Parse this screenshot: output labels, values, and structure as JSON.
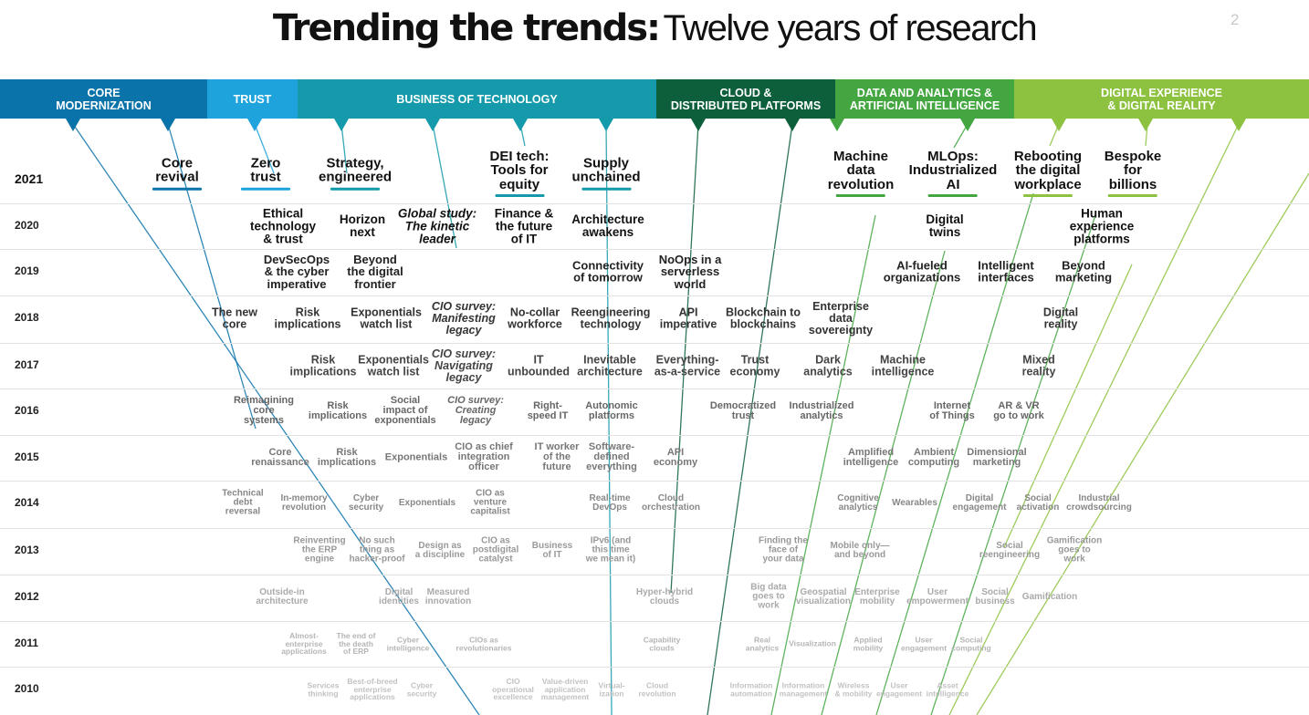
{
  "title": {
    "bold": "Trending the trends:",
    "light": "Twelve years of research"
  },
  "page_number": "2",
  "categories": [
    {
      "id": "core",
      "label": "CORE\nMODERNIZATION",
      "color": "#0a73aa"
    },
    {
      "id": "trust",
      "label": "TRUST",
      "color": "#1ea3dc"
    },
    {
      "id": "business",
      "label": "BUSINESS OF TECHNOLOGY",
      "color": "#149aaa"
    },
    {
      "id": "cloud",
      "label": "CLOUD &\nDISTRIBUTED PLATFORMS",
      "color": "#0d5f3b"
    },
    {
      "id": "data",
      "label": "DATA AND ANALYTICS &\nARTIFICIAL INTELLIGENCE",
      "color": "#43a641"
    },
    {
      "id": "digital",
      "label": "DIGITAL EXPERIENCE\n& DIGITAL REALITY",
      "color": "#8cc23f"
    }
  ],
  "years": [
    "2021",
    "2020",
    "2019",
    "2018",
    "2017",
    "2016",
    "2015",
    "2014",
    "2013",
    "2012",
    "2011",
    "2010"
  ],
  "trends": [
    {
      "year": "2021",
      "lines": [
        "Core",
        "revival"
      ],
      "cat": "core",
      "italic": false
    },
    {
      "year": "2021",
      "lines": [
        "Zero",
        "trust"
      ],
      "cat": "trust",
      "italic": false
    },
    {
      "year": "2021",
      "lines": [
        "Strategy,",
        "engineered"
      ],
      "cat": "business",
      "italic": false
    },
    {
      "year": "2021",
      "lines": [
        "DEI tech:",
        "Tools for",
        "equity"
      ],
      "cat": "business",
      "italic": false
    },
    {
      "year": "2021",
      "lines": [
        "Supply",
        "unchained"
      ],
      "cat": "business",
      "italic": false
    },
    {
      "year": "2021",
      "lines": [
        "Machine",
        "data",
        "revolution"
      ],
      "cat": "data",
      "italic": false
    },
    {
      "year": "2021",
      "lines": [
        "MLOps:",
        "Industrialized",
        "AI"
      ],
      "cat": "data",
      "italic": false
    },
    {
      "year": "2021",
      "lines": [
        "Rebooting",
        "the digital",
        "workplace"
      ],
      "cat": "digital",
      "italic": false
    },
    {
      "year": "2021",
      "lines": [
        "Bespoke",
        "for",
        "billions"
      ],
      "cat": "digital",
      "italic": false
    },
    {
      "year": "2020",
      "lines": [
        "Ethical",
        "technology",
        "& trust"
      ],
      "cat": "trust",
      "italic": false
    },
    {
      "year": "2020",
      "lines": [
        "Horizon",
        "next"
      ],
      "cat": "business",
      "italic": false
    },
    {
      "year": "2020",
      "lines": [
        "Global study:",
        "The kinetic",
        "leader"
      ],
      "cat": "business",
      "italic": true
    },
    {
      "year": "2020",
      "lines": [
        "Finance &",
        "the future",
        "of IT"
      ],
      "cat": "business",
      "italic": false
    },
    {
      "year": "2020",
      "lines": [
        "Architecture",
        "awakens"
      ],
      "cat": "business",
      "italic": false
    },
    {
      "year": "2020",
      "lines": [
        "Digital",
        "twins"
      ],
      "cat": "data",
      "italic": false
    },
    {
      "year": "2020",
      "lines": [
        "Human",
        "experience",
        "platforms"
      ],
      "cat": "digital",
      "italic": false
    },
    {
      "year": "2019",
      "lines": [
        "DevSecOps",
        "& the cyber",
        "imperative"
      ],
      "cat": "trust",
      "italic": false
    },
    {
      "year": "2019",
      "lines": [
        "Beyond",
        "the digital",
        "frontier"
      ],
      "cat": "business",
      "italic": false
    },
    {
      "year": "2019",
      "lines": [
        "Connectivity",
        "of tomorrow"
      ],
      "cat": "business",
      "italic": false
    },
    {
      "year": "2019",
      "lines": [
        "NoOps in a",
        "serverless",
        "world"
      ],
      "cat": "cloud",
      "italic": false
    },
    {
      "year": "2019",
      "lines": [
        "AI-fueled",
        "organizations"
      ],
      "cat": "data",
      "italic": false
    },
    {
      "year": "2019",
      "lines": [
        "Intelligent",
        "interfaces"
      ],
      "cat": "digital",
      "italic": false
    },
    {
      "year": "2019",
      "lines": [
        "Beyond",
        "marketing"
      ],
      "cat": "digital",
      "italic": false
    },
    {
      "year": "2018",
      "lines": [
        "The new",
        "core"
      ],
      "cat": "core",
      "italic": false
    },
    {
      "year": "2018",
      "lines": [
        "Risk",
        "implications"
      ],
      "cat": "trust",
      "italic": false
    },
    {
      "year": "2018",
      "lines": [
        "Exponentials",
        "watch list"
      ],
      "cat": "business",
      "italic": false
    },
    {
      "year": "2018",
      "lines": [
        "CIO survey:",
        "Manifesting",
        "legacy"
      ],
      "cat": "business",
      "italic": true
    },
    {
      "year": "2018",
      "lines": [
        "No-collar",
        "workforce"
      ],
      "cat": "business",
      "italic": false
    },
    {
      "year": "2018",
      "lines": [
        "Reengineering",
        "technology"
      ],
      "cat": "business",
      "italic": false
    },
    {
      "year": "2018",
      "lines": [
        "API",
        "imperative"
      ],
      "cat": "cloud",
      "italic": false
    },
    {
      "year": "2018",
      "lines": [
        "Blockchain to",
        "blockchains"
      ],
      "cat": "cloud",
      "italic": false
    },
    {
      "year": "2018",
      "lines": [
        "Enterprise",
        "data",
        "sovereignty"
      ],
      "cat": "data",
      "italic": false
    },
    {
      "year": "2018",
      "lines": [
        "Digital",
        "reality"
      ],
      "cat": "digital",
      "italic": false
    },
    {
      "year": "2017",
      "lines": [
        "Risk",
        "implications"
      ],
      "cat": "trust",
      "italic": false
    },
    {
      "year": "2017",
      "lines": [
        "Exponentials",
        "watch list"
      ],
      "cat": "business",
      "italic": false
    },
    {
      "year": "2017",
      "lines": [
        "CIO survey:",
        "Navigating",
        "legacy"
      ],
      "cat": "business",
      "italic": true
    },
    {
      "year": "2017",
      "lines": [
        "IT",
        "unbounded"
      ],
      "cat": "business",
      "italic": false
    },
    {
      "year": "2017",
      "lines": [
        "Inevitable",
        "architecture"
      ],
      "cat": "business",
      "italic": false
    },
    {
      "year": "2017",
      "lines": [
        "Everything-",
        "as-a-service"
      ],
      "cat": "cloud",
      "italic": false
    },
    {
      "year": "2017",
      "lines": [
        "Trust",
        "economy"
      ],
      "cat": "cloud",
      "italic": false
    },
    {
      "year": "2017",
      "lines": [
        "Dark",
        "analytics"
      ],
      "cat": "data",
      "italic": false
    },
    {
      "year": "2017",
      "lines": [
        "Machine",
        "intelligence"
      ],
      "cat": "data",
      "italic": false
    },
    {
      "year": "2017",
      "lines": [
        "Mixed",
        "reality"
      ],
      "cat": "digital",
      "italic": false
    },
    {
      "year": "2016",
      "lines": [
        "Reimagining",
        "core",
        "systems"
      ],
      "cat": "core",
      "italic": false
    },
    {
      "year": "2016",
      "lines": [
        "Risk",
        "implications"
      ],
      "cat": "trust",
      "italic": false
    },
    {
      "year": "2016",
      "lines": [
        "Social",
        "impact of",
        "exponentials"
      ],
      "cat": "business",
      "italic": false
    },
    {
      "year": "2016",
      "lines": [
        "CIO survey:",
        "Creating",
        "legacy"
      ],
      "cat": "business",
      "italic": true
    },
    {
      "year": "2016",
      "lines": [
        "Right-",
        "speed IT"
      ],
      "cat": "business",
      "italic": false
    },
    {
      "year": "2016",
      "lines": [
        "Autonomic",
        "platforms"
      ],
      "cat": "business",
      "italic": false
    },
    {
      "year": "2016",
      "lines": [
        "Democratized",
        "trust"
      ],
      "cat": "cloud",
      "italic": false
    },
    {
      "year": "2016",
      "lines": [
        "Industrialized",
        "analytics"
      ],
      "cat": "data",
      "italic": false
    },
    {
      "year": "2016",
      "lines": [
        "Internet",
        "of Things"
      ],
      "cat": "data",
      "italic": false
    },
    {
      "year": "2016",
      "lines": [
        "AR & VR",
        "go to work"
      ],
      "cat": "digital",
      "italic": false
    },
    {
      "year": "2015",
      "lines": [
        "Core",
        "renaissance"
      ],
      "cat": "core",
      "italic": false
    },
    {
      "year": "2015",
      "lines": [
        "Risk",
        "implications"
      ],
      "cat": "trust",
      "italic": false
    },
    {
      "year": "2015",
      "lines": [
        "Exponentials"
      ],
      "cat": "business",
      "italic": false
    },
    {
      "year": "2015",
      "lines": [
        "CIO as chief",
        "integration",
        "officer"
      ],
      "cat": "business",
      "italic": false
    },
    {
      "year": "2015",
      "lines": [
        "IT worker",
        "of the",
        "future"
      ],
      "cat": "business",
      "italic": false
    },
    {
      "year": "2015",
      "lines": [
        "Software-",
        "defined",
        "everything"
      ],
      "cat": "business",
      "italic": false
    },
    {
      "year": "2015",
      "lines": [
        "API",
        "economy"
      ],
      "cat": "cloud",
      "italic": false
    },
    {
      "year": "2015",
      "lines": [
        "Amplified",
        "intelligence"
      ],
      "cat": "data",
      "italic": false
    },
    {
      "year": "2015",
      "lines": [
        "Ambient",
        "computing"
      ],
      "cat": "data",
      "italic": false
    },
    {
      "year": "2015",
      "lines": [
        "Dimensional",
        "marketing"
      ],
      "cat": "digital",
      "italic": false
    },
    {
      "year": "2014",
      "lines": [
        "Technical",
        "debt",
        "reversal"
      ],
      "cat": "core",
      "italic": false
    },
    {
      "year": "2014",
      "lines": [
        "In-memory",
        "revolution"
      ],
      "cat": "core",
      "italic": false
    },
    {
      "year": "2014",
      "lines": [
        "Cyber",
        "security"
      ],
      "cat": "trust",
      "italic": false
    },
    {
      "year": "2014",
      "lines": [
        "Exponentials"
      ],
      "cat": "business",
      "italic": false
    },
    {
      "year": "2014",
      "lines": [
        "CIO as",
        "venture",
        "capitalist"
      ],
      "cat": "business",
      "italic": false
    },
    {
      "year": "2014",
      "lines": [
        "Real-time",
        "DevOps"
      ],
      "cat": "business",
      "italic": false
    },
    {
      "year": "2014",
      "lines": [
        "Cloud",
        "orchestration"
      ],
      "cat": "cloud",
      "italic": false
    },
    {
      "year": "2014",
      "lines": [
        "Cognitive",
        "analytics"
      ],
      "cat": "data",
      "italic": false
    },
    {
      "year": "2014",
      "lines": [
        "Wearables"
      ],
      "cat": "digital",
      "italic": false
    },
    {
      "year": "2014",
      "lines": [
        "Digital",
        "engagement"
      ],
      "cat": "digital",
      "italic": false
    },
    {
      "year": "2014",
      "lines": [
        "Social",
        "activation"
      ],
      "cat": "digital",
      "italic": false
    },
    {
      "year": "2014",
      "lines": [
        "Industrial",
        "crowdsourcing"
      ],
      "cat": "digital",
      "italic": false
    },
    {
      "year": "2013",
      "lines": [
        "Reinventing",
        "the ERP",
        "engine"
      ],
      "cat": "core",
      "italic": false
    },
    {
      "year": "2013",
      "lines": [
        "No such",
        "thing as",
        "hacker-proof"
      ],
      "cat": "trust",
      "italic": false
    },
    {
      "year": "2013",
      "lines": [
        "Design as",
        "a discipline"
      ],
      "cat": "business",
      "italic": false
    },
    {
      "year": "2013",
      "lines": [
        "CIO as",
        "postdigital",
        "catalyst"
      ],
      "cat": "business",
      "italic": false
    },
    {
      "year": "2013",
      "lines": [
        "Business",
        "of IT"
      ],
      "cat": "business",
      "italic": false
    },
    {
      "year": "2013",
      "lines": [
        "IPv6 (and",
        "this time",
        "we mean it)"
      ],
      "cat": "business",
      "italic": false
    },
    {
      "year": "2013",
      "lines": [
        "Finding the",
        "face of",
        "your data"
      ],
      "cat": "data",
      "italic": false
    },
    {
      "year": "2013",
      "lines": [
        "Mobile only—",
        "and beyond"
      ],
      "cat": "digital",
      "italic": false
    },
    {
      "year": "2013",
      "lines": [
        "Social",
        "reengineering"
      ],
      "cat": "digital",
      "italic": false
    },
    {
      "year": "2013",
      "lines": [
        "Gamification",
        "goes to",
        "work"
      ],
      "cat": "digital",
      "italic": false
    },
    {
      "year": "2012",
      "lines": [
        "Outside-in",
        "architecture"
      ],
      "cat": "core",
      "italic": false
    },
    {
      "year": "2012",
      "lines": [
        "Digital",
        "identities"
      ],
      "cat": "trust",
      "italic": false
    },
    {
      "year": "2012",
      "lines": [
        "Measured",
        "innovation"
      ],
      "cat": "business",
      "italic": false
    },
    {
      "year": "2012",
      "lines": [
        "Hyper-hybrid",
        "clouds"
      ],
      "cat": "cloud",
      "italic": false
    },
    {
      "year": "2012",
      "lines": [
        "Big data",
        "goes to",
        "work"
      ],
      "cat": "data",
      "italic": false
    },
    {
      "year": "2012",
      "lines": [
        "Geospatial",
        "visualization"
      ],
      "cat": "data",
      "italic": false
    },
    {
      "year": "2012",
      "lines": [
        "Enterprise",
        "mobility"
      ],
      "cat": "digital",
      "italic": false
    },
    {
      "year": "2012",
      "lines": [
        "User",
        "empowerment"
      ],
      "cat": "digital",
      "italic": false
    },
    {
      "year": "2012",
      "lines": [
        "Social",
        "business"
      ],
      "cat": "digital",
      "italic": false
    },
    {
      "year": "2012",
      "lines": [
        "Gamification"
      ],
      "cat": "digital",
      "italic": false
    },
    {
      "year": "2011",
      "lines": [
        "Almost-",
        "enterprise",
        "applications"
      ],
      "cat": "core",
      "italic": false
    },
    {
      "year": "2011",
      "lines": [
        "The end of",
        "the death",
        "of ERP"
      ],
      "cat": "core",
      "italic": false
    },
    {
      "year": "2011",
      "lines": [
        "Cyber",
        "intelligence"
      ],
      "cat": "trust",
      "italic": false
    },
    {
      "year": "2011",
      "lines": [
        "CIOs as",
        "revolutionaries"
      ],
      "cat": "business",
      "italic": false
    },
    {
      "year": "2011",
      "lines": [
        "Capability",
        "clouds"
      ],
      "cat": "cloud",
      "italic": false
    },
    {
      "year": "2011",
      "lines": [
        "Real",
        "analytics"
      ],
      "cat": "data",
      "italic": false
    },
    {
      "year": "2011",
      "lines": [
        "Visualization"
      ],
      "cat": "data",
      "italic": false
    },
    {
      "year": "2011",
      "lines": [
        "Applied",
        "mobility"
      ],
      "cat": "digital",
      "italic": false
    },
    {
      "year": "2011",
      "lines": [
        "User",
        "engagement"
      ],
      "cat": "digital",
      "italic": false
    },
    {
      "year": "2011",
      "lines": [
        "Social",
        "computing"
      ],
      "cat": "digital",
      "italic": false
    },
    {
      "year": "2010",
      "lines": [
        "Services",
        "thinking"
      ],
      "cat": "core",
      "italic": false
    },
    {
      "year": "2010",
      "lines": [
        "Best-of-breed",
        "enterprise",
        "applications"
      ],
      "cat": "core",
      "italic": false
    },
    {
      "year": "2010",
      "lines": [
        "Cyber",
        "security"
      ],
      "cat": "trust",
      "italic": false
    },
    {
      "year": "2010",
      "lines": [
        "CIO",
        "operational",
        "excellence"
      ],
      "cat": "business",
      "italic": false
    },
    {
      "year": "2010",
      "lines": [
        "Value-driven",
        "application",
        "management"
      ],
      "cat": "business",
      "italic": false
    },
    {
      "year": "2010",
      "lines": [
        "Virtual-",
        "ization"
      ],
      "cat": "cloud",
      "italic": false
    },
    {
      "year": "2010",
      "lines": [
        "Cloud",
        "revolution"
      ],
      "cat": "cloud",
      "italic": false
    },
    {
      "year": "2010",
      "lines": [
        "Information",
        "automation"
      ],
      "cat": "data",
      "italic": false
    },
    {
      "year": "2010",
      "lines": [
        "Information",
        "management"
      ],
      "cat": "data",
      "italic": false
    },
    {
      "year": "2010",
      "lines": [
        "Wireless",
        "& mobility"
      ],
      "cat": "digital",
      "italic": false
    },
    {
      "year": "2010",
      "lines": [
        "User",
        "engagement"
      ],
      "cat": "digital",
      "italic": false
    },
    {
      "year": "2010",
      "lines": [
        "Asset",
        "intelligence"
      ],
      "cat": "digital",
      "italic": false
    }
  ]
}
